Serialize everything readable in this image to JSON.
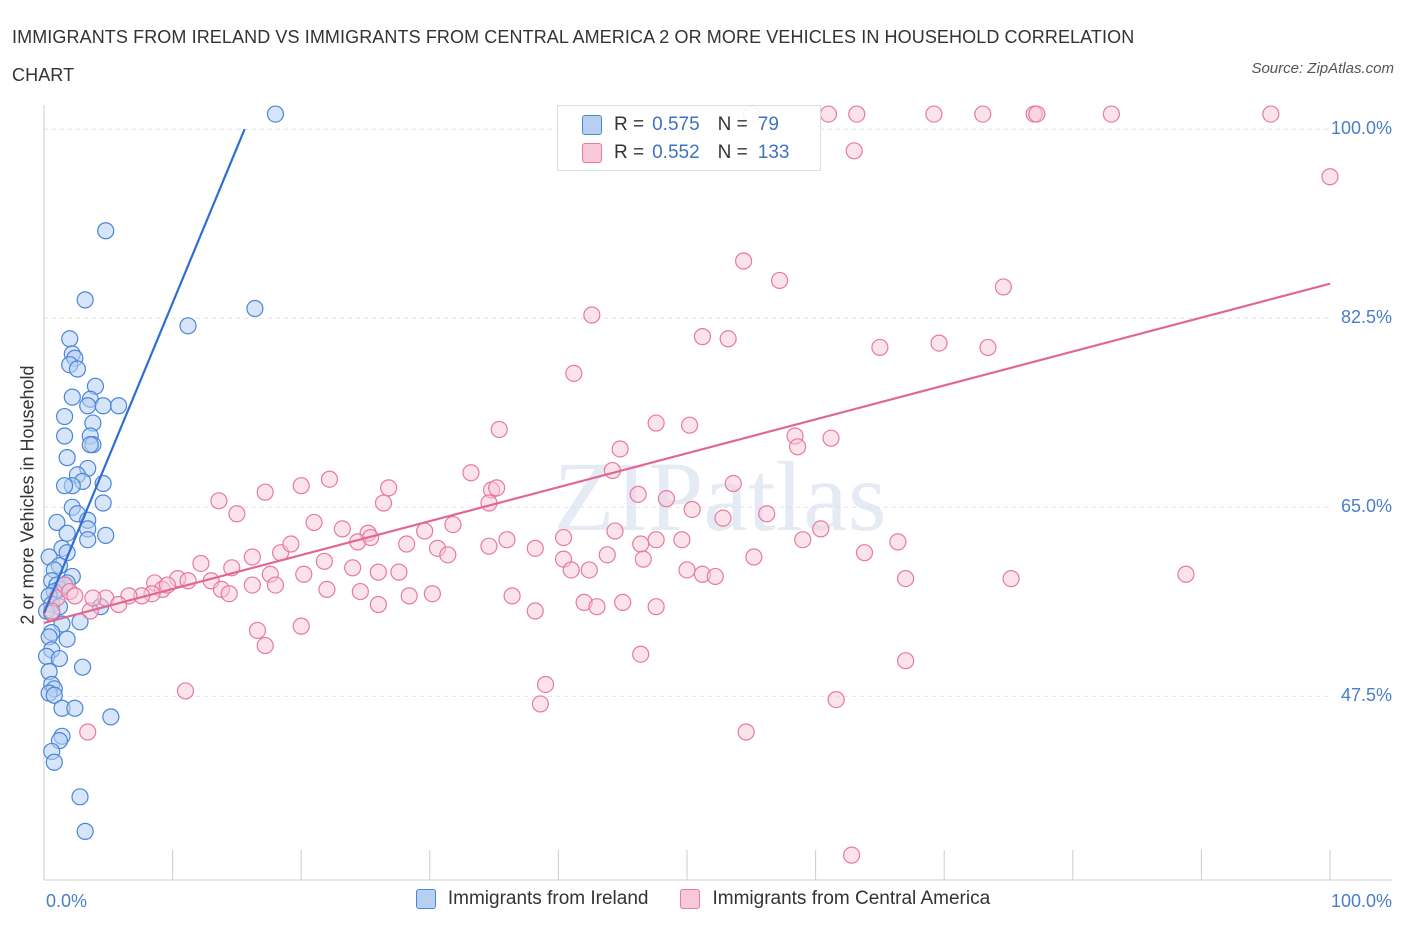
{
  "title": "IMMIGRANTS FROM IRELAND VS IMMIGRANTS FROM CENTRAL AMERICA 2 OR MORE VEHICLES IN HOUSEHOLD CORRELATION CHART",
  "source": "Source: ZipAtlas.com",
  "watermark": "ZIPatlas",
  "colors": {
    "ireland": "#4a86d8",
    "central_america": "#e8799f",
    "tick_text": "#4a7ec8",
    "grid": "#e3e3e3"
  },
  "legend": {
    "ireland": {
      "r_label": "R =",
      "r_value": "0.575",
      "n_label": "N =",
      "n_value": "79"
    },
    "central_america": {
      "r_label": "R =",
      "r_value": "0.552",
      "n_label": "N =",
      "n_value": "133"
    }
  },
  "chart_data": {
    "type": "scatter",
    "title": "IMMIGRANTS FROM IRELAND VS IMMIGRANTS FROM CENTRAL AMERICA 2 OR MORE VEHICLES IN HOUSEHOLD CORRELATION CHART",
    "xlabel": "",
    "ylabel": "2 or more Vehicles in Household",
    "xlim": [
      0,
      100
    ],
    "ylim": [
      30.5,
      101.5
    ],
    "x_tick_labels": [
      "0.0%",
      "100.0%"
    ],
    "y_tick_labels": [
      {
        "value": 100.0,
        "label": "100.0%"
      },
      {
        "value": 82.5,
        "label": "82.5%"
      },
      {
        "value": 65.0,
        "label": "65.0%"
      },
      {
        "value": 47.5,
        "label": "47.5%"
      }
    ],
    "grid": true,
    "legend_position": "bottom",
    "series": [
      {
        "name": "Immigrants from Ireland",
        "color": "#4a86d8",
        "trend": {
          "x": [
            0,
            15.6
          ],
          "y": [
            55.2,
            100.0
          ]
        },
        "points": [
          [
            18.0,
            101.4
          ],
          [
            4.8,
            90.6
          ],
          [
            11.2,
            81.8
          ],
          [
            3.2,
            84.2
          ],
          [
            16.4,
            83.4
          ],
          [
            2.0,
            80.6
          ],
          [
            2.2,
            79.2
          ],
          [
            2.4,
            78.8
          ],
          [
            2.0,
            78.2
          ],
          [
            2.6,
            77.8
          ],
          [
            4.0,
            76.2
          ],
          [
            2.2,
            75.2
          ],
          [
            3.6,
            75.0
          ],
          [
            3.4,
            74.4
          ],
          [
            4.6,
            74.4
          ],
          [
            5.8,
            74.4
          ],
          [
            1.6,
            73.4
          ],
          [
            3.8,
            72.8
          ],
          [
            3.6,
            71.6
          ],
          [
            1.6,
            71.6
          ],
          [
            3.8,
            70.8
          ],
          [
            3.6,
            70.8
          ],
          [
            1.8,
            69.6
          ],
          [
            3.4,
            68.6
          ],
          [
            2.6,
            68.0
          ],
          [
            3.0,
            67.4
          ],
          [
            2.2,
            67.0
          ],
          [
            4.6,
            67.2
          ],
          [
            1.6,
            67.0
          ],
          [
            2.2,
            65.0
          ],
          [
            4.6,
            65.4
          ],
          [
            2.6,
            64.4
          ],
          [
            3.4,
            63.8
          ],
          [
            1.0,
            63.6
          ],
          [
            3.4,
            63.0
          ],
          [
            1.8,
            62.6
          ],
          [
            4.8,
            62.4
          ],
          [
            3.4,
            62.0
          ],
          [
            1.4,
            61.2
          ],
          [
            1.8,
            60.8
          ],
          [
            0.4,
            60.4
          ],
          [
            1.2,
            59.6
          ],
          [
            0.8,
            59.2
          ],
          [
            2.2,
            58.6
          ],
          [
            1.8,
            58.0
          ],
          [
            0.6,
            58.2
          ],
          [
            1.0,
            57.8
          ],
          [
            1.2,
            57.4
          ],
          [
            1.6,
            57.8
          ],
          [
            0.8,
            57.2
          ],
          [
            0.4,
            56.8
          ],
          [
            0.6,
            56.0
          ],
          [
            1.2,
            55.8
          ],
          [
            4.4,
            55.8
          ],
          [
            0.2,
            55.4
          ],
          [
            0.6,
            55.2
          ],
          [
            1.4,
            54.2
          ],
          [
            2.8,
            54.4
          ],
          [
            0.6,
            53.4
          ],
          [
            0.4,
            53.0
          ],
          [
            1.8,
            52.8
          ],
          [
            0.6,
            51.8
          ],
          [
            0.2,
            51.2
          ],
          [
            1.2,
            51.0
          ],
          [
            3.0,
            50.2
          ],
          [
            0.4,
            49.8
          ],
          [
            0.6,
            48.6
          ],
          [
            0.8,
            48.2
          ],
          [
            0.4,
            47.8
          ],
          [
            0.8,
            47.6
          ],
          [
            1.4,
            46.4
          ],
          [
            2.4,
            46.4
          ],
          [
            5.2,
            45.6
          ],
          [
            1.4,
            43.8
          ],
          [
            1.2,
            43.4
          ],
          [
            0.6,
            42.4
          ],
          [
            0.8,
            41.4
          ],
          [
            2.8,
            38.2
          ],
          [
            3.2,
            35.0
          ]
        ]
      },
      {
        "name": "Immigrants from Central America",
        "color": "#e8799f",
        "trend": {
          "x": [
            0,
            100
          ],
          "y": [
            54.3,
            85.7
          ]
        },
        "points": [
          [
            55.0,
            101.4
          ],
          [
            61.0,
            101.4
          ],
          [
            63.2,
            101.4
          ],
          [
            69.2,
            101.4
          ],
          [
            73.0,
            101.4
          ],
          [
            77.0,
            101.4
          ],
          [
            77.2,
            101.4
          ],
          [
            83.0,
            101.4
          ],
          [
            95.4,
            101.4
          ],
          [
            63.0,
            98.0
          ],
          [
            100.0,
            95.6
          ],
          [
            54.4,
            87.8
          ],
          [
            57.2,
            86.0
          ],
          [
            74.6,
            85.4
          ],
          [
            42.6,
            82.8
          ],
          [
            51.2,
            80.8
          ],
          [
            53.2,
            80.6
          ],
          [
            65.0,
            79.8
          ],
          [
            69.6,
            80.2
          ],
          [
            73.4,
            79.8
          ],
          [
            41.2,
            77.4
          ],
          [
            35.4,
            72.2
          ],
          [
            44.8,
            70.4
          ],
          [
            47.6,
            72.8
          ],
          [
            50.2,
            72.6
          ],
          [
            58.4,
            71.6
          ],
          [
            61.2,
            71.4
          ],
          [
            58.6,
            70.6
          ],
          [
            26.8,
            66.8
          ],
          [
            33.2,
            68.2
          ],
          [
            34.8,
            66.6
          ],
          [
            26.4,
            65.4
          ],
          [
            22.2,
            67.6
          ],
          [
            34.6,
            65.4
          ],
          [
            35.2,
            66.8
          ],
          [
            44.2,
            68.4
          ],
          [
            46.2,
            66.2
          ],
          [
            48.4,
            65.8
          ],
          [
            50.4,
            64.8
          ],
          [
            53.6,
            67.2
          ],
          [
            56.2,
            64.4
          ],
          [
            20.0,
            67.0
          ],
          [
            17.2,
            66.4
          ],
          [
            13.6,
            65.6
          ],
          [
            15.0,
            64.4
          ],
          [
            21.0,
            63.6
          ],
          [
            23.2,
            63.0
          ],
          [
            25.2,
            62.6
          ],
          [
            29.6,
            62.8
          ],
          [
            31.8,
            63.4
          ],
          [
            36.0,
            62.0
          ],
          [
            40.4,
            62.2
          ],
          [
            44.4,
            62.8
          ],
          [
            46.4,
            61.6
          ],
          [
            47.6,
            62.0
          ],
          [
            49.6,
            62.0
          ],
          [
            52.8,
            64.0
          ],
          [
            55.2,
            60.4
          ],
          [
            59.0,
            62.0
          ],
          [
            60.4,
            63.0
          ],
          [
            66.4,
            61.8
          ],
          [
            67.0,
            58.4
          ],
          [
            75.2,
            58.4
          ],
          [
            88.8,
            58.8
          ],
          [
            63.8,
            60.8
          ],
          [
            18.4,
            60.8
          ],
          [
            19.2,
            61.6
          ],
          [
            21.8,
            60.0
          ],
          [
            24.4,
            61.8
          ],
          [
            25.4,
            62.2
          ],
          [
            24.0,
            59.4
          ],
          [
            26.0,
            59.0
          ],
          [
            27.6,
            59.0
          ],
          [
            28.2,
            61.6
          ],
          [
            30.6,
            61.2
          ],
          [
            31.4,
            60.6
          ],
          [
            34.6,
            61.4
          ],
          [
            38.2,
            61.2
          ],
          [
            40.4,
            60.2
          ],
          [
            41.0,
            59.2
          ],
          [
            42.4,
            59.2
          ],
          [
            43.8,
            60.6
          ],
          [
            46.6,
            60.2
          ],
          [
            50.0,
            59.2
          ],
          [
            51.2,
            58.8
          ],
          [
            52.2,
            58.6
          ],
          [
            12.2,
            59.8
          ],
          [
            14.6,
            59.4
          ],
          [
            16.2,
            60.4
          ],
          [
            16.2,
            57.8
          ],
          [
            10.4,
            58.4
          ],
          [
            11.2,
            58.2
          ],
          [
            13.0,
            58.2
          ],
          [
            13.8,
            57.4
          ],
          [
            14.4,
            57.0
          ],
          [
            17.6,
            58.8
          ],
          [
            18.0,
            57.8
          ],
          [
            20.2,
            58.8
          ],
          [
            22.0,
            57.4
          ],
          [
            24.6,
            57.2
          ],
          [
            26.0,
            56.0
          ],
          [
            28.4,
            56.8
          ],
          [
            30.2,
            57.0
          ],
          [
            36.4,
            56.8
          ],
          [
            38.2,
            55.4
          ],
          [
            42.0,
            56.2
          ],
          [
            43.0,
            55.8
          ],
          [
            45.0,
            56.2
          ],
          [
            47.6,
            55.8
          ],
          [
            8.6,
            58.0
          ],
          [
            9.2,
            57.4
          ],
          [
            9.6,
            57.8
          ],
          [
            8.4,
            57.0
          ],
          [
            7.6,
            56.8
          ],
          [
            6.6,
            56.8
          ],
          [
            4.8,
            56.6
          ],
          [
            5.8,
            56.0
          ],
          [
            3.6,
            55.4
          ],
          [
            3.8,
            56.6
          ],
          [
            1.0,
            56.6
          ],
          [
            1.6,
            57.8
          ],
          [
            2.0,
            57.2
          ],
          [
            2.4,
            56.8
          ],
          [
            0.6,
            55.4
          ],
          [
            16.6,
            53.6
          ],
          [
            17.2,
            52.2
          ],
          [
            20.0,
            54.0
          ],
          [
            46.4,
            51.4
          ],
          [
            67.0,
            50.8
          ],
          [
            39.0,
            48.6
          ],
          [
            38.6,
            46.8
          ],
          [
            11.0,
            48.0
          ],
          [
            61.6,
            47.2
          ],
          [
            54.6,
            44.2
          ],
          [
            3.4,
            44.2
          ],
          [
            62.8,
            32.8
          ]
        ]
      }
    ]
  },
  "bottom_legend": {
    "items": [
      {
        "label": "Immigrants from Ireland"
      },
      {
        "label": "Immigrants from Central America"
      }
    ]
  }
}
